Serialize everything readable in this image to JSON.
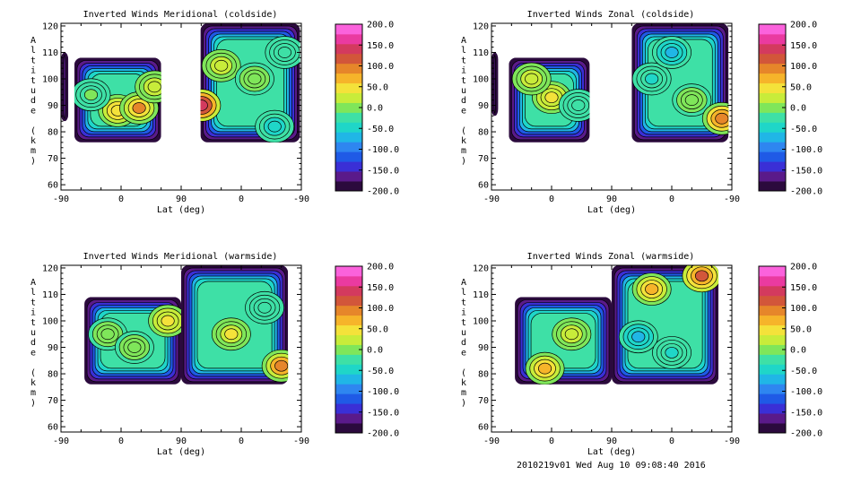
{
  "footer": "2010219v01 Wed Aug 10 09:08:40 2016",
  "colorbar": {
    "ticks": [
      "200.0",
      "150.0",
      "100.0",
      "50.0",
      "0.0",
      "-50.0",
      "-100.0",
      "-150.0",
      "-200.0"
    ],
    "colors": [
      "#2b0a3d",
      "#5a1a8a",
      "#3a2fd6",
      "#1f5ae6",
      "#2e86f0",
      "#20b6e6",
      "#1fd6c8",
      "#3ee0a6",
      "#7fe65a",
      "#c8ec3a",
      "#f4e23a",
      "#f6b42a",
      "#e6862a",
      "#d2563a",
      "#d33a5e",
      "#ea3aa0",
      "#fb62dc"
    ]
  },
  "chart_data": [
    {
      "type": "heatmap",
      "title": "Inverted Winds Meridional (coldside)",
      "xlabel": "Lat (deg)",
      "ylabel": "Altitude (km)",
      "xticks": [
        "-90",
        "0",
        "90",
        "0",
        "-90"
      ],
      "yticks": [
        "60",
        "70",
        "80",
        "90",
        "100",
        "110",
        "120"
      ],
      "ylim": [
        58,
        121
      ],
      "zlim": [
        -200,
        200
      ],
      "segments": [
        {
          "x": [
            -90,
            -79
          ],
          "y": [
            84,
            110
          ]
        },
        {
          "x": [
            -70,
            60
          ],
          "y": [
            76,
            108
          ]
        },
        {
          "x": [
            119,
            268
          ],
          "y": [
            76,
            121
          ]
        }
      ],
      "features": [
        {
          "x": -5,
          "y": 88,
          "value": 55
        },
        {
          "x": 27,
          "y": 89,
          "value": 85
        },
        {
          "x": 50,
          "y": 97,
          "value": 35
        },
        {
          "x": -45,
          "y": 94,
          "value": -10
        },
        {
          "x": 150,
          "y": 105,
          "value": 30
        },
        {
          "x": 200,
          "y": 100,
          "value": 0
        },
        {
          "x": 245,
          "y": 110,
          "value": -25
        },
        {
          "x": 120,
          "y": 90,
          "value": 150
        },
        {
          "x": 230,
          "y": 82,
          "value": -45
        }
      ]
    },
    {
      "type": "heatmap",
      "title": "Inverted Winds Zonal (coldside)",
      "xlabel": "Lat (deg)",
      "ylabel": "Altitude (km)",
      "xticks": [
        "-90",
        "0",
        "90",
        "0",
        "-90"
      ],
      "yticks": [
        "60",
        "70",
        "80",
        "90",
        "100",
        "110",
        "120"
      ],
      "ylim": [
        58,
        121
      ],
      "zlim": [
        -200,
        200
      ],
      "segments": [
        {
          "x": [
            -90,
            -80
          ],
          "y": [
            86,
            110
          ]
        },
        {
          "x": [
            -64,
            57
          ],
          "y": [
            76,
            108
          ]
        },
        {
          "x": 0,
          "y": 0,
          "unused": true
        },
        {
          "x": [
            120,
            265
          ],
          "y": [
            76,
            121
          ]
        }
      ],
      "features": [
        {
          "x": 0,
          "y": 93,
          "value": 50
        },
        {
          "x": -30,
          "y": 100,
          "value": 30
        },
        {
          "x": 40,
          "y": 90,
          "value": -20
        },
        {
          "x": 150,
          "y": 100,
          "value": -40
        },
        {
          "x": 210,
          "y": 92,
          "value": 10
        },
        {
          "x": 255,
          "y": 85,
          "value": 100
        },
        {
          "x": 180,
          "y": 110,
          "value": -60
        }
      ]
    },
    {
      "type": "heatmap",
      "title": "Inverted Winds Meridional (warmside)",
      "xlabel": "Lat (deg)",
      "ylabel": "Altitude (km)",
      "xticks": [
        "-90",
        "0",
        "90",
        "0",
        "-90"
      ],
      "yticks": [
        "60",
        "70",
        "80",
        "90",
        "100",
        "110",
        "120"
      ],
      "ylim": [
        58,
        121
      ],
      "zlim": [
        -200,
        200
      ],
      "segments": [
        {
          "x": [
            -55,
            90
          ],
          "y": [
            76,
            109
          ]
        },
        {
          "x": [
            90,
            250
          ],
          "y": [
            76,
            121
          ]
        }
      ],
      "features": [
        {
          "x": 70,
          "y": 100,
          "value": 50
        },
        {
          "x": -20,
          "y": 95,
          "value": 10
        },
        {
          "x": 20,
          "y": 90,
          "value": 0
        },
        {
          "x": 165,
          "y": 95,
          "value": 40
        },
        {
          "x": 240,
          "y": 83,
          "value": 90
        },
        {
          "x": 215,
          "y": 105,
          "value": -30
        }
      ]
    },
    {
      "type": "heatmap",
      "title": "Inverted Winds Zonal (warmside)",
      "xlabel": "Lat (deg)",
      "ylabel": "Altitude (km)",
      "xticks": [
        "-90",
        "0",
        "90",
        "0",
        "-90"
      ],
      "yticks": [
        "60",
        "70",
        "80",
        "90",
        "100",
        "110",
        "120"
      ],
      "ylim": [
        58,
        121
      ],
      "zlim": [
        -200,
        200
      ],
      "segments": [
        {
          "x": [
            -55,
            90
          ],
          "y": [
            76,
            109
          ]
        },
        {
          "x": [
            90,
            250
          ],
          "y": [
            76,
            121
          ]
        }
      ],
      "features": [
        {
          "x": -10,
          "y": 82,
          "value": 60
        },
        {
          "x": 30,
          "y": 95,
          "value": 30
        },
        {
          "x": 150,
          "y": 112,
          "value": 70
        },
        {
          "x": 225,
          "y": 117,
          "value": 110
        },
        {
          "x": 130,
          "y": 94,
          "value": -70
        },
        {
          "x": 180,
          "y": 88,
          "value": -40
        }
      ]
    }
  ]
}
